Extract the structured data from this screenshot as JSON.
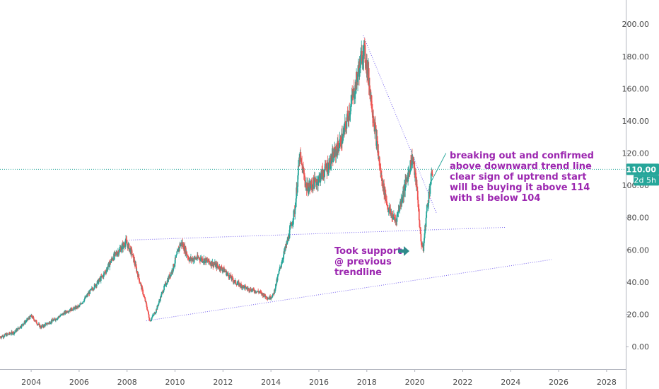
{
  "chart_data": {
    "type": "candlestick",
    "title": "",
    "xlabel": "",
    "ylabel": "",
    "x_range": [
      2002.7,
      2028.8
    ],
    "y_range": [
      -14,
      215
    ],
    "x_ticks": [
      "2004",
      "2006",
      "2008",
      "2010",
      "2012",
      "2014",
      "2016",
      "2018",
      "2020",
      "2022",
      "2024",
      "2026",
      "2028"
    ],
    "y_ticks": [
      "0.00",
      "20.00",
      "40.00",
      "60.00",
      "80.00",
      "100.00",
      "120.00",
      "140.00",
      "160.00",
      "180.00",
      "200.00"
    ],
    "grid": false,
    "colors": {
      "up": "#26a69a",
      "down": "#ef5350",
      "trendline": "#7b68ee",
      "price_line": "#26a69a",
      "annotation": "#9c27b0",
      "arrow": "#2e8b8b"
    },
    "price_path": [
      [
        2002.7,
        6
      ],
      [
        2003.3,
        9
      ],
      [
        2003.8,
        16
      ],
      [
        2004.0,
        19
      ],
      [
        2004.4,
        12
      ],
      [
        2005.0,
        17
      ],
      [
        2005.5,
        22
      ],
      [
        2006.0,
        25
      ],
      [
        2006.5,
        35
      ],
      [
        2007.0,
        44
      ],
      [
        2007.4,
        55
      ],
      [
        2007.8,
        62
      ],
      [
        2007.95,
        65
      ],
      [
        2008.2,
        58
      ],
      [
        2008.5,
        42
      ],
      [
        2008.8,
        26
      ],
      [
        2008.95,
        16
      ],
      [
        2009.2,
        22
      ],
      [
        2009.5,
        35
      ],
      [
        2009.9,
        48
      ],
      [
        2010.2,
        63
      ],
      [
        2010.3,
        64
      ],
      [
        2010.6,
        54
      ],
      [
        2011.0,
        55
      ],
      [
        2011.5,
        52
      ],
      [
        2012.0,
        48
      ],
      [
        2012.5,
        40
      ],
      [
        2013.0,
        36
      ],
      [
        2013.5,
        34
      ],
      [
        2013.9,
        30
      ],
      [
        2014.1,
        32
      ],
      [
        2014.4,
        50
      ],
      [
        2014.7,
        66
      ],
      [
        2015.0,
        85
      ],
      [
        2015.2,
        118
      ],
      [
        2015.5,
        98
      ],
      [
        2016.0,
        104
      ],
      [
        2016.5,
        115
      ],
      [
        2017.0,
        130
      ],
      [
        2017.5,
        160
      ],
      [
        2017.85,
        185
      ],
      [
        2018.0,
        175
      ],
      [
        2018.3,
        140
      ],
      [
        2018.6,
        105
      ],
      [
        2018.9,
        85
      ],
      [
        2019.2,
        78
      ],
      [
        2019.6,
        100
      ],
      [
        2019.9,
        118
      ],
      [
        2020.1,
        97
      ],
      [
        2020.25,
        66
      ],
      [
        2020.35,
        60
      ],
      [
        2020.5,
        85
      ],
      [
        2020.65,
        101
      ],
      [
        2020.75,
        110
      ]
    ],
    "trendlines": [
      {
        "from": [
          2007.9,
          66
        ],
        "to": [
          2023.8,
          74
        ]
      },
      {
        "from": [
          2008.8,
          16
        ],
        "to": [
          2025.7,
          54
        ]
      },
      {
        "from": [
          2017.85,
          193
        ],
        "to": [
          2020.9,
          83
        ]
      }
    ],
    "horizontal_level": 110,
    "price_label": "110.00",
    "countdown_label": "2d 5h",
    "annotations": {
      "breakout": [
        "breaking out and confirmed",
        "above downward trend line",
        "clear sign of uptrend start",
        "will be buying it above 114",
        "with sl below 104"
      ],
      "support": [
        "Took support",
        "@ previous",
        "trendline"
      ]
    }
  }
}
